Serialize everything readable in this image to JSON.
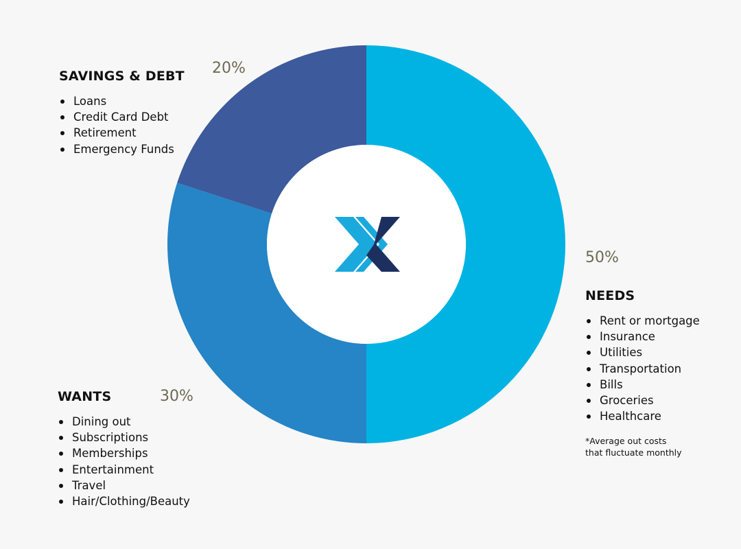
{
  "chart_data": {
    "type": "pie",
    "donut": true,
    "categories": [
      "NEEDS",
      "WANTS",
      "SAVINGS & DEBT"
    ],
    "values": [
      50,
      30,
      20
    ],
    "value_labels": [
      "50%",
      "30%",
      "20%"
    ],
    "colors": [
      "#00b3e3",
      "#2585c6",
      "#3c5a9c"
    ],
    "center_logo": "x-logo-icon",
    "legend": "none"
  },
  "sections": {
    "needs": {
      "title": "NEEDS",
      "percent": "50%",
      "items": [
        "Rent or mortgage",
        "Insurance",
        "Utilities",
        "Transportation",
        "Bills",
        "Groceries",
        "Healthcare"
      ]
    },
    "wants": {
      "title": "WANTS",
      "percent": "30%",
      "items": [
        "Dining out",
        "Subscriptions",
        "Memberships",
        "Entertainment",
        "Travel",
        "Hair/Clothing/Beauty"
      ]
    },
    "savings": {
      "title": "SAVINGS & DEBT",
      "percent": "20%",
      "items": [
        "Loans",
        "Credit Card Debt",
        "Retirement",
        "Emergency Funds"
      ]
    }
  },
  "footnote": {
    "line1": "*Average out costs",
    "line2": "that fluctuate monthly"
  },
  "logo": {
    "icon": "x-logo-icon",
    "colors": [
      "#1aa9dc",
      "#1d2f5f"
    ]
  }
}
